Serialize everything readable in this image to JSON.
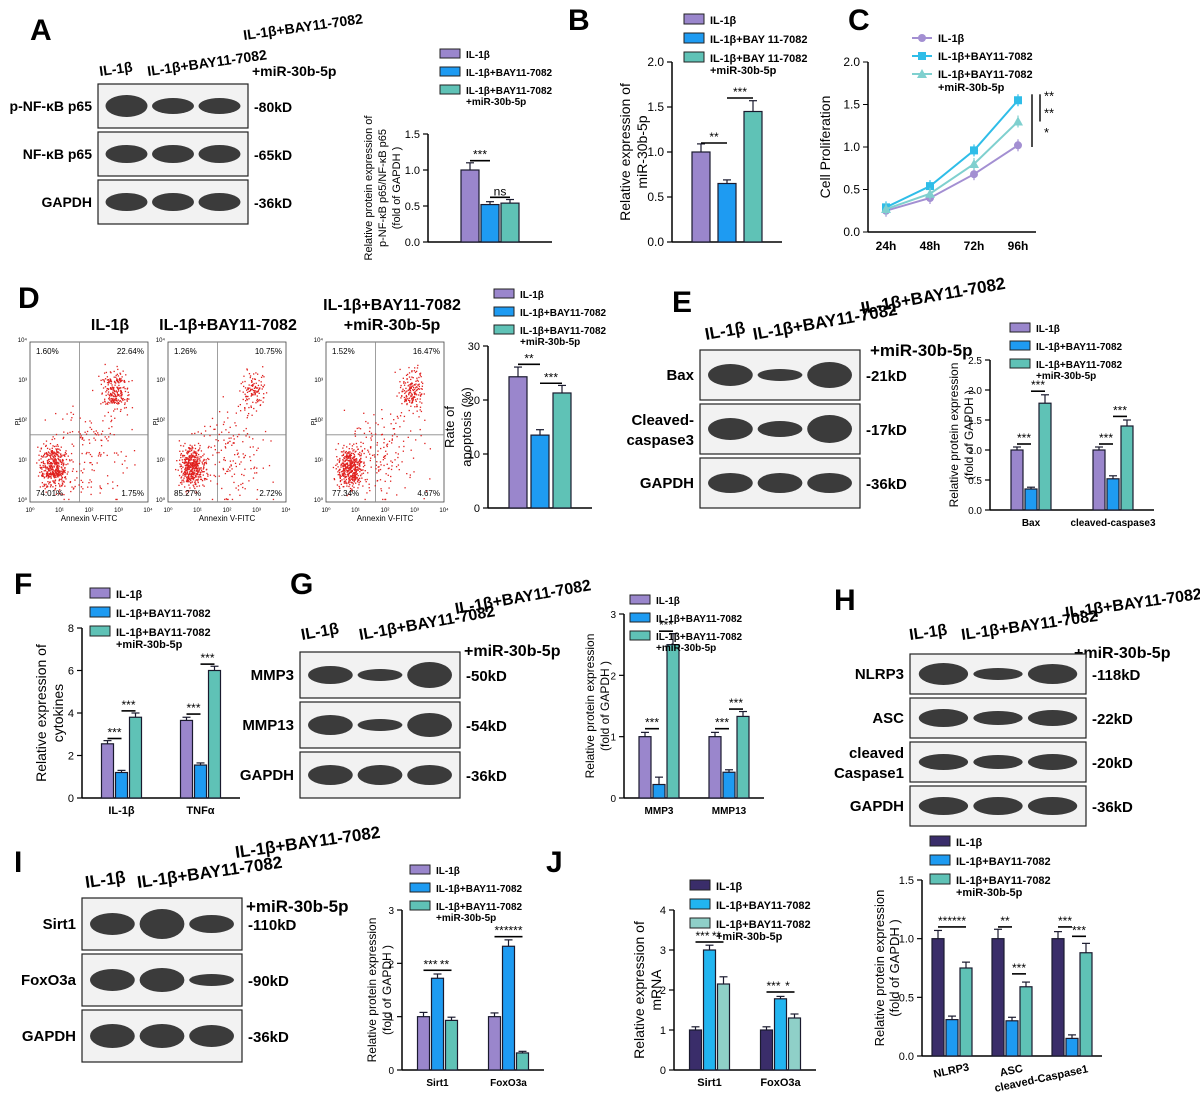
{
  "colors": {
    "purple": "#9a86cc",
    "blue": "#1e9bf2",
    "teal": "#5fc2b6",
    "dark_purple": "#3a2d6a",
    "light_blue": "#22b5f0",
    "light_teal": "#8fd0c8",
    "line_purple": "#a38fd2",
    "line_cyan": "#2fbde8",
    "line_teal": "#7fd0cf",
    "band": "#3b3b3b",
    "blot_bg": "#f2f2f2"
  },
  "panel_labels": [
    "A",
    "B",
    "C",
    "D",
    "E",
    "F",
    "G",
    "H",
    "I",
    "J"
  ],
  "panel_A": {
    "lane_labels": [
      "IL-1β",
      "IL-1β+BAY11-7082",
      "IL-1β+BAY11-7082",
      "+miR-30b-5p"
    ],
    "rows": [
      {
        "name": "p-NF-κB p65",
        "mw": "-80kD",
        "extra": "+miR-30b-5p"
      },
      {
        "name": "NF-κB p65",
        "mw": "-65kD"
      },
      {
        "name": "GAPDH",
        "mw": "-36kD"
      }
    ]
  },
  "panel_D": {
    "titles": [
      "IL-1β",
      "IL-1β+BAY11-7082",
      "IL-1β+BAY11-7082",
      "+miR-30b-5p"
    ],
    "quadrants": [
      {
        "ul": "1.60%",
        "ur": "22.64%",
        "ll": "74.01%",
        "lr": "1.75%"
      },
      {
        "ul": "1.26%",
        "ur": "10.75%",
        "ll": "85.27%",
        "lr": "2.72%"
      },
      {
        "ul": "1.52%",
        "ur": "16.47%",
        "ll": "77.34%",
        "lr": "4.67%"
      }
    ],
    "xaxis": "Annexin V-FITC",
    "yaxis": "PI",
    "ticks": [
      "10⁰",
      "10¹",
      "10²",
      "10³",
      "10⁴"
    ]
  },
  "panel_E": {
    "lane_labels": [
      "IL-1β",
      "IL-1β+BAY11-7082",
      "IL-1β+BAY11-7082",
      "+miR-30b-5p"
    ],
    "rows": [
      {
        "name": "Bax",
        "mw": "-21kD"
      },
      {
        "name": "Cleaved-",
        "name2": "caspase3",
        "mw": "-17kD"
      },
      {
        "name": "GAPDH",
        "mw": "-36kD"
      }
    ]
  },
  "panel_G": {
    "lane_labels": [
      "IL-1β",
      "IL-1β+BAY11-7082",
      "IL-1β+BAY11-7082",
      "+miR-30b-5p"
    ],
    "rows": [
      {
        "name": "MMP3",
        "mw": "-50kD"
      },
      {
        "name": "MMP13",
        "mw": "-54kD"
      },
      {
        "name": "GAPDH",
        "mw": "-36kD"
      }
    ]
  },
  "panel_H": {
    "lane_labels": [
      "IL-1β",
      "IL-1β+BAY11-7082",
      "IL-1β+BAY11-7082",
      "+miR-30b-5p"
    ],
    "rows": [
      {
        "name": "Sirt1",
        "mw": "-110kD"
      },
      {
        "name": "FoxO3a",
        "mw": "-90kD"
      },
      {
        "name": "GAPDH",
        "mw": "-36kD"
      }
    ]
  },
  "panel_J": {
    "lane_labels": [
      "IL-1β",
      "IL-1β+BAY11-7082",
      "IL-1β+BAY11-7082",
      "+miR-30b-5p"
    ],
    "rows": [
      {
        "name": "NLRP3",
        "mw": "-118kD"
      },
      {
        "name": "ASC",
        "mw": "-22kD"
      },
      {
        "name": "cleaved",
        "name2": "Caspase1",
        "mw": "-20kD"
      },
      {
        "name": "GAPDH",
        "mw": "-36kD"
      }
    ]
  },
  "chart_data": [
    {
      "id": "A",
      "type": "bar",
      "ylabel": "Relative protein expression of p-NF-κB p65/NF-κB p65 (fold of GAPDH )",
      "ylim": [
        0,
        1.5
      ],
      "yticks": [
        "0.0",
        "0.5",
        "1.0",
        "1.5"
      ],
      "categories": [
        ""
      ],
      "series": [
        {
          "name": "IL-1β",
          "values": [
            1.0
          ],
          "errors": [
            0.1
          ],
          "color": "#9a86cc"
        },
        {
          "name": "IL-1β+BAY11-7082",
          "values": [
            0.52
          ],
          "errors": [
            0.04
          ],
          "color": "#1e9bf2"
        },
        {
          "name": "IL-1β+BAY11-7082 +miR-30b-5p",
          "values": [
            0.54
          ],
          "errors": [
            0.05
          ],
          "color": "#5fc2b6"
        }
      ],
      "sig": [
        {
          "text": "***",
          "from": 0,
          "to": 1,
          "y": 1.13
        },
        {
          "text": "ns",
          "from": 1,
          "to": 2,
          "y": 0.62
        }
      ]
    },
    {
      "id": "B",
      "type": "bar",
      "ylabel": "Relative expression of miR-30b-5p",
      "ylim": [
        0,
        2.0
      ],
      "yticks": [
        "0.0",
        "0.5",
        "1.0",
        "1.5",
        "2.0"
      ],
      "categories": [
        ""
      ],
      "series": [
        {
          "name": "IL-1β",
          "values": [
            1.0
          ],
          "errors": [
            0.09
          ],
          "color": "#9a86cc"
        },
        {
          "name": "IL-1β+BAY 11-7082",
          "values": [
            0.65
          ],
          "errors": [
            0.04
          ],
          "color": "#1e9bf2"
        },
        {
          "name": "IL-1β+BAY 11-7082 +miR-30b-5p",
          "values": [
            1.45
          ],
          "errors": [
            0.12
          ],
          "color": "#5fc2b6"
        }
      ],
      "sig": [
        {
          "text": "**",
          "from": 0,
          "to": 1,
          "y": 1.1
        },
        {
          "text": "***",
          "from": 1,
          "to": 2,
          "y": 1.6
        }
      ]
    },
    {
      "id": "C",
      "type": "line",
      "ylabel": "Cell Proliferation",
      "ylim": [
        0,
        2.0
      ],
      "yticks": [
        "0.0",
        "0.5",
        "1.0",
        "1.5",
        "2.0"
      ],
      "x": [
        "24h",
        "48h",
        "72h",
        "96h"
      ],
      "series": [
        {
          "name": "IL-1β",
          "values": [
            0.25,
            0.4,
            0.68,
            1.02
          ],
          "color": "#a38fd2",
          "marker": "circle"
        },
        {
          "name": "IL-1β+BAY11-7082",
          "values": [
            0.29,
            0.54,
            0.96,
            1.55
          ],
          "color": "#2fbde8",
          "marker": "square"
        },
        {
          "name": "IL-1β+BAY11-7082 +miR-30b-5p",
          "values": [
            0.27,
            0.45,
            0.8,
            1.3
          ],
          "color": "#7fd0cf",
          "marker": "triangle"
        }
      ],
      "sig": [
        "**",
        "**",
        "*"
      ]
    },
    {
      "id": "D",
      "type": "bar",
      "ylabel": "Rate of apoptosis (%)",
      "ylim": [
        0,
        30
      ],
      "yticks": [
        "0",
        "10",
        "20",
        "30"
      ],
      "categories": [
        ""
      ],
      "series": [
        {
          "name": "IL-1β",
          "values": [
            24.3
          ],
          "errors": [
            1.8
          ],
          "color": "#9a86cc"
        },
        {
          "name": "IL-1β+BAY11-7082",
          "values": [
            13.5
          ],
          "errors": [
            1.0
          ],
          "color": "#1e9bf2"
        },
        {
          "name": "IL-1β+BAY11-7082 +miR-30b-5p",
          "values": [
            21.3
          ],
          "errors": [
            1.4
          ],
          "color": "#5fc2b6"
        }
      ],
      "sig": [
        {
          "text": "**",
          "from": 0,
          "to": 1,
          "y": 26.6
        },
        {
          "text": "***",
          "from": 1,
          "to": 2,
          "y": 23.1
        }
      ]
    },
    {
      "id": "E",
      "type": "bar",
      "ylabel": "Relative protein expression (fold of GAPDH )",
      "ylim": [
        0,
        2.5
      ],
      "yticks": [
        "0.0",
        "0.5",
        "1.0",
        "1.5",
        "2.0",
        "2.5"
      ],
      "categories": [
        "Bax",
        "cleaved-caspase3"
      ],
      "series": [
        {
          "name": "IL-1β",
          "values": [
            1.0,
            1.0
          ],
          "errors": [
            0.05,
            0.05
          ],
          "color": "#9a86cc"
        },
        {
          "name": "IL-1β+BAY11-7082",
          "values": [
            0.35,
            0.52
          ],
          "errors": [
            0.03,
            0.05
          ],
          "color": "#1e9bf2"
        },
        {
          "name": "IL-1β+BAY11-7082 +miR-30b-5p",
          "values": [
            1.78,
            1.4
          ],
          "errors": [
            0.14,
            0.1
          ],
          "color": "#5fc2b6"
        }
      ],
      "sig": [
        {
          "text": "***",
          "cat": 0,
          "from": 0,
          "to": 1,
          "y": 1.1
        },
        {
          "text": "***",
          "cat": 0,
          "from": 1,
          "to": 2,
          "y": 1.98
        },
        {
          "text": "***",
          "cat": 1,
          "from": 0,
          "to": 1,
          "y": 1.1
        },
        {
          "text": "***",
          "cat": 1,
          "from": 1,
          "to": 2,
          "y": 1.56
        }
      ]
    },
    {
      "id": "F",
      "type": "bar",
      "ylabel": "Relative expression of cytokines",
      "ylim": [
        0,
        8
      ],
      "yticks": [
        "0",
        "2",
        "4",
        "6",
        "8"
      ],
      "categories": [
        "IL-1β",
        "TNFα"
      ],
      "series": [
        {
          "name": "IL-1β",
          "values": [
            2.55,
            3.65
          ],
          "errors": [
            0.15,
            0.15
          ],
          "color": "#9a86cc"
        },
        {
          "name": "IL-1β+BAY11-7082",
          "values": [
            1.2,
            1.55
          ],
          "errors": [
            0.1,
            0.1
          ],
          "color": "#1e9bf2"
        },
        {
          "name": "IL-1β+BAY11-7082 +miR-30b-5p",
          "values": [
            3.8,
            6.0
          ],
          "errors": [
            0.2,
            0.2
          ],
          "color": "#5fc2b6"
        }
      ],
      "sig": [
        {
          "text": "***",
          "cat": 0,
          "from": 0,
          "to": 1,
          "y": 2.8
        },
        {
          "text": "***",
          "cat": 0,
          "from": 1,
          "to": 2,
          "y": 4.1
        },
        {
          "text": "***",
          "cat": 1,
          "from": 0,
          "to": 1,
          "y": 3.95
        },
        {
          "text": "***",
          "cat": 1,
          "from": 1,
          "to": 2,
          "y": 6.3
        }
      ]
    },
    {
      "id": "G",
      "type": "bar",
      "ylabel": "Relative protein expression (fold of GAPDH )",
      "ylim": [
        0,
        3
      ],
      "yticks": [
        "0",
        "1",
        "2",
        "3"
      ],
      "categories": [
        "MMP3",
        "MMP13"
      ],
      "series": [
        {
          "name": "IL-1β",
          "values": [
            1.0,
            1.0
          ],
          "errors": [
            0.07,
            0.07
          ],
          "color": "#9a86cc"
        },
        {
          "name": "IL-1β+BAY11-7082",
          "values": [
            0.22,
            0.42
          ],
          "errors": [
            0.12,
            0.04
          ],
          "color": "#1e9bf2"
        },
        {
          "name": "IL-1β+BAY11-7082 +miR-30b-5p",
          "values": [
            2.5,
            1.33
          ],
          "errors": [
            0.18,
            0.08
          ],
          "color": "#5fc2b6"
        }
      ],
      "sig": [
        {
          "text": "***",
          "cat": 0,
          "from": 0,
          "to": 1,
          "y": 1.13
        },
        {
          "text": "***",
          "cat": 0,
          "from": 1,
          "to": 2,
          "y": 2.72
        },
        {
          "text": "***",
          "cat": 1,
          "from": 0,
          "to": 1,
          "y": 1.13
        },
        {
          "text": "***",
          "cat": 1,
          "from": 1,
          "to": 2,
          "y": 1.45
        }
      ]
    },
    {
      "id": "H",
      "type": "bar",
      "ylabel": "Relative protein expression (fold of GAPDH )",
      "ylim": [
        0,
        3
      ],
      "yticks": [
        "0",
        "1",
        "2",
        "3"
      ],
      "categories": [
        "Sirt1",
        "FoxO3a"
      ],
      "series": [
        {
          "name": "IL-1β",
          "values": [
            1.0,
            1.0
          ],
          "errors": [
            0.08,
            0.07
          ],
          "color": "#9a86cc"
        },
        {
          "name": "IL-1β+BAY11-7082",
          "values": [
            1.72,
            2.32
          ],
          "errors": [
            0.08,
            0.12
          ],
          "color": "#1e9bf2"
        },
        {
          "name": "IL-1β+BAY11-7082 +miR-30b-5p",
          "values": [
            0.93,
            0.32
          ],
          "errors": [
            0.06,
            0.03
          ],
          "color": "#5fc2b6"
        }
      ],
      "sig": [
        {
          "text": "***",
          "cat": 0,
          "from": 0,
          "to": 1,
          "y": 1.87
        },
        {
          "text": "**",
          "cat": 0,
          "from": 1,
          "to": 2,
          "y": 1.87
        },
        {
          "text": "***",
          "cat": 1,
          "from": 0,
          "to": 1,
          "y": 2.5
        },
        {
          "text": "***",
          "cat": 1,
          "from": 1,
          "to": 2,
          "y": 2.5
        }
      ]
    },
    {
      "id": "I",
      "type": "bar",
      "ylabel": "Relative expression of mRNA",
      "ylim": [
        0,
        4
      ],
      "yticks": [
        "0",
        "1",
        "2",
        "3",
        "4"
      ],
      "categories": [
        "Sirt1",
        "FoxO3a"
      ],
      "series": [
        {
          "name": "IL-1β",
          "values": [
            1.0,
            1.0
          ],
          "errors": [
            0.08,
            0.08
          ],
          "color": "#3a2d6a"
        },
        {
          "name": "IL-1β+BAY11-7082",
          "values": [
            3.0,
            1.78
          ],
          "errors": [
            0.12,
            0.06
          ],
          "color": "#22b5f0"
        },
        {
          "name": "IL-1β+BAY11-7082 +miR-30b-5p",
          "values": [
            2.15,
            1.3
          ],
          "errors": [
            0.18,
            0.1
          ],
          "color": "#8fd0c8"
        }
      ],
      "sig": [
        {
          "text": "***",
          "cat": 0,
          "from": 0,
          "to": 1,
          "y": 3.2
        },
        {
          "text": "**",
          "cat": 0,
          "from": 1,
          "to": 2,
          "y": 3.2
        },
        {
          "text": "***",
          "cat": 1,
          "from": 0,
          "to": 1,
          "y": 1.95
        },
        {
          "text": "*",
          "cat": 1,
          "from": 1,
          "to": 2,
          "y": 1.95
        }
      ]
    },
    {
      "id": "J",
      "type": "bar",
      "ylabel": "Relative protein expression (fold of GAPDH )",
      "ylim": [
        0,
        1.5
      ],
      "yticks": [
        "0.0",
        "0.5",
        "1.0",
        "1.5"
      ],
      "categories": [
        "NLRP3",
        "ASC",
        "cleaved-Caspase1"
      ],
      "series": [
        {
          "name": "IL-1β",
          "values": [
            1.0,
            1.0,
            1.0
          ],
          "errors": [
            0.07,
            0.08,
            0.06
          ],
          "color": "#3a2d6a"
        },
        {
          "name": "IL-1β+BAY11-7082",
          "values": [
            0.31,
            0.3,
            0.15
          ],
          "errors": [
            0.03,
            0.03,
            0.03
          ],
          "color": "#1e9bf2"
        },
        {
          "name": "IL-1β+BAY11-7082 +miR-30b-5p",
          "values": [
            0.75,
            0.59,
            0.88
          ],
          "errors": [
            0.05,
            0.04,
            0.08
          ],
          "color": "#5fc2b6"
        }
      ],
      "sig": [
        {
          "text": "***",
          "cat": 0,
          "from": 0,
          "to": 1,
          "y": 1.1
        },
        {
          "text": "***",
          "cat": 0,
          "from": 1,
          "to": 2,
          "y": 1.1
        },
        {
          "text": "**",
          "cat": 1,
          "from": 0,
          "to": 1,
          "y": 1.1
        },
        {
          "text": "***",
          "cat": 1,
          "from": 1,
          "to": 2,
          "y": 0.7
        },
        {
          "text": "***",
          "cat": 2,
          "from": 0,
          "to": 1,
          "y": 1.1
        },
        {
          "text": "***",
          "cat": 2,
          "from": 1,
          "to": 2,
          "y": 1.02
        }
      ]
    }
  ]
}
